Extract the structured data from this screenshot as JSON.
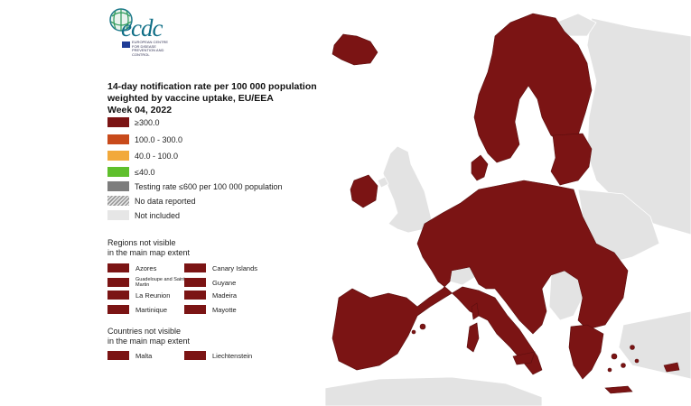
{
  "logo": {
    "wordmark": "ecdc",
    "subtitle": "EUROPEAN CENTRE FOR DISEASE PREVENTION AND CONTROL"
  },
  "title": {
    "line1": "14-day notification rate per 100 000 population",
    "line2": "weighted by vaccine uptake, EU/EEA",
    "line3": "Week 04, 2022"
  },
  "legend": {
    "items": [
      {
        "label": "≥300.0",
        "color": "#7b1414"
      },
      {
        "label": "100.0 - 300.0",
        "color": "#c84a1b"
      },
      {
        "label": "40.0 - 100.0",
        "color": "#f2a93b"
      },
      {
        "label": "≤40.0",
        "color": "#5fbf2c"
      },
      {
        "label": "Testing rate ≤600 per 100 000 population",
        "color": "#7d7d7d"
      },
      {
        "label": "No data reported",
        "color": "hatched"
      },
      {
        "label": "Not included",
        "color": "#e6e6e6"
      }
    ]
  },
  "regions": {
    "title_line1": "Regions not visible",
    "title_line2": "in the main map extent",
    "left": [
      "Azores",
      "Guadeloupe and Saint Martin",
      "La Reunion",
      "Martinique"
    ],
    "right": [
      "Canary Islands",
      "Guyane",
      "Madeira",
      "Mayotte"
    ]
  },
  "countries": {
    "title_line1": "Countries not visible",
    "title_line2": "in the main map extent",
    "left": "Malta",
    "right": "Liechtenstein"
  },
  "colors": {
    "eu_fill": "#7b1414",
    "non_included": "#e3e3e3",
    "sea": "#ffffff"
  }
}
